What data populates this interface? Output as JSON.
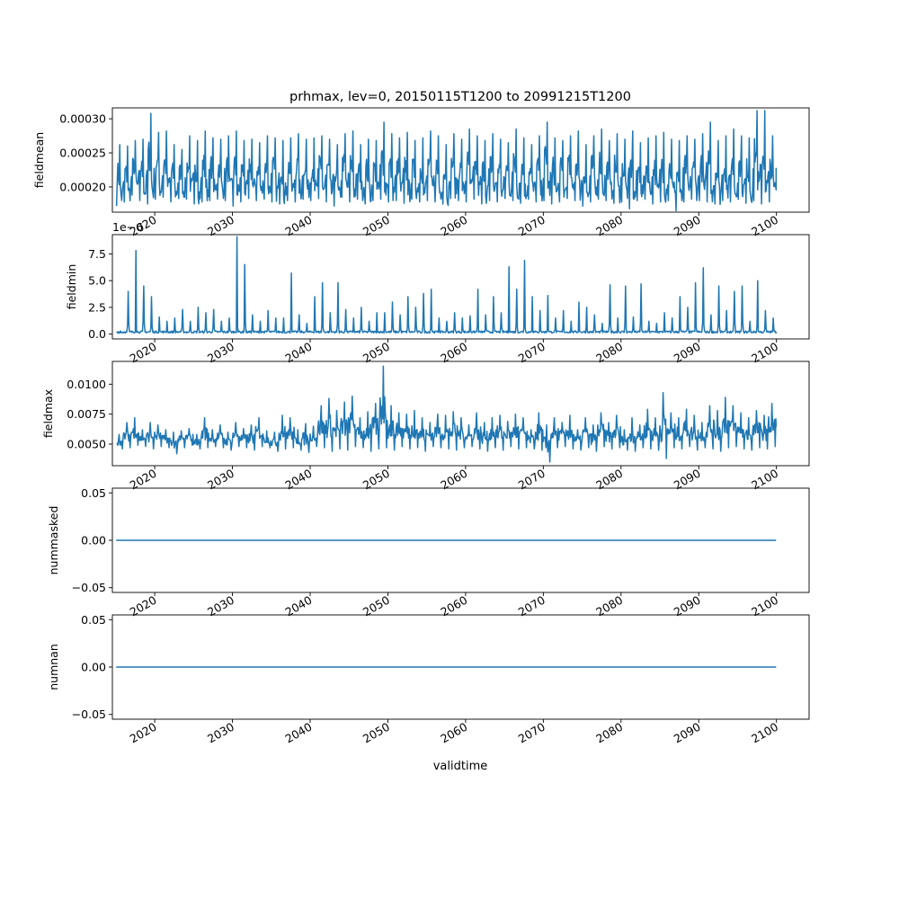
{
  "figure_title": "prhmax, lev=0, 20150115T1200 to 20991215T1200",
  "xlabel": "validtime",
  "line_color": "#1f77b4",
  "xaxis": {
    "ticks": [
      2020,
      2030,
      2040,
      2050,
      2060,
      2070,
      2080,
      2090,
      2100
    ],
    "tick_labels": [
      "2020",
      "2030",
      "2040",
      "2050",
      "2060",
      "2070",
      "2080",
      "2090",
      "2100"
    ],
    "range": [
      2015.04,
      2099.96
    ]
  },
  "chart_data": [
    {
      "type": "line",
      "ylabel": "fieldmean",
      "offset_text": "",
      "ylim": [
        0.000163,
        0.000316
      ],
      "yticks": [
        0.0002,
        0.00025,
        0.0003
      ],
      "ytick_labels": [
        "0.00020",
        "0.00025",
        "0.00030"
      ],
      "series": [
        {
          "x": [
            2015.0,
            2016.0,
            2017.0,
            2018.0,
            2019.0,
            2020.0,
            2021.0,
            2022.0,
            2023.0,
            2024.0,
            2025.0,
            2026.0,
            2027.0,
            2028.0,
            2029.0,
            2030.0,
            2031.0,
            2032.0,
            2033.0,
            2034.0,
            2035.0,
            2036.0,
            2037.0,
            2038.0,
            2039.0,
            2040.0,
            2041.0,
            2042.0,
            2043.0,
            2044.0,
            2045.0,
            2046.0,
            2047.0,
            2048.0,
            2049.0,
            2050.0,
            2051.0,
            2052.0,
            2053.0,
            2054.0,
            2055.0,
            2056.0,
            2057.0,
            2058.0,
            2059.0,
            2060.0,
            2061.0,
            2062.0,
            2063.0,
            2064.0,
            2065.0,
            2066.0,
            2067.0,
            2068.0,
            2069.0,
            2070.0,
            2071.0,
            2072.0,
            2073.0,
            2074.0,
            2075.0,
            2076.0,
            2077.0,
            2078.0,
            2079.0,
            2080.0,
            2081.0,
            2082.0,
            2083.0,
            2084.0,
            2085.0,
            2086.0,
            2087.0,
            2088.0,
            2089.0,
            2090.0,
            2091.0,
            2092.0,
            2093.0,
            2094.0,
            2095.0,
            2096.0,
            2097.0,
            2098.0,
            2099.0,
            2099.96
          ],
          "y": [
            0.000262,
            0.00026,
            0.000268,
            0.00027,
            0.000308,
            0.00028,
            0.000282,
            0.000262,
            0.000255,
            0.000275,
            0.000268,
            0.000282,
            0.000272,
            0.00027,
            0.000275,
            0.000282,
            0.000268,
            0.00027,
            0.000265,
            0.000275,
            0.000272,
            0.000268,
            0.000272,
            0.000278,
            0.00027,
            0.000272,
            0.000275,
            0.00027,
            0.000262,
            0.000278,
            0.000282,
            0.000262,
            0.00027,
            0.000268,
            0.000295,
            0.000278,
            0.000272,
            0.00028,
            0.000268,
            0.000272,
            0.000282,
            0.000275,
            0.000262,
            0.000278,
            0.00027,
            0.000285,
            0.000275,
            0.000268,
            0.000278,
            0.00027,
            0.000265,
            0.000285,
            0.000272,
            0.000262,
            0.000275,
            0.000295,
            0.000272,
            0.000268,
            0.000275,
            0.000282,
            0.000262,
            0.000275,
            0.000285,
            0.000268,
            0.000278,
            0.00027,
            0.000282,
            0.000265,
            0.000272,
            0.000275,
            0.00028,
            0.00027,
            0.000268,
            0.000275,
            0.00027,
            0.000278,
            0.000295,
            0.000268,
            0.000275,
            0.000285,
            0.000275,
            0.000272,
            0.000312,
            0.000312,
            0.000275,
            0.000228
          ],
          "y_min": [
            0.000172,
            0.000178,
            0.000188,
            0.00018,
            0.000175,
            0.000182,
            0.000185,
            0.000178,
            0.000183,
            0.000182,
            0.000175,
            0.000178,
            0.00018,
            0.000182,
            0.00018,
            0.000172,
            0.000178,
            0.000183,
            0.00018,
            0.000182,
            0.000178,
            0.000175,
            0.00018,
            0.000178,
            0.000182,
            0.00018,
            0.000183,
            0.000178,
            0.000172,
            0.000185,
            0.000178,
            0.000182,
            0.000175,
            0.00018,
            0.000182,
            0.000178,
            0.00018,
            0.000176,
            0.000182,
            0.000178,
            0.00018,
            0.000178,
            0.000175,
            0.000183,
            0.00018,
            0.000178,
            0.000182,
            0.000175,
            0.00018,
            0.000178,
            0.000183,
            0.00018,
            0.000176,
            0.000182,
            0.000178,
            0.00018,
            0.000175,
            0.000178,
            0.000183,
            0.00018,
            0.000172,
            0.000178,
            0.000182,
            0.00018,
            0.000176,
            0.000178,
            0.000168,
            0.00018,
            0.000182,
            0.000175,
            0.000178,
            0.00018,
            0.000165,
            0.000178,
            0.000182,
            0.00018,
            0.000178,
            0.000175,
            0.00018,
            0.000178,
            0.000182,
            0.000176,
            0.00018,
            0.000175,
            0.000178,
            0.00017
          ]
        }
      ]
    },
    {
      "type": "line",
      "ylabel": "fieldmin",
      "offset_text": "1e−6",
      "ylim": [
        -4.5e-07,
        9.3e-06
      ],
      "yticks": [
        0,
        2.5e-06,
        5e-06,
        7.5e-06
      ],
      "ytick_labels": [
        "0.0",
        "2.5",
        "5.0",
        "7.5"
      ],
      "series": [
        {
          "x": [
            2015.0,
            2016.0,
            2017.0,
            2018.0,
            2019.0,
            2020.0,
            2021.0,
            2022.0,
            2023.0,
            2024.0,
            2025.0,
            2026.0,
            2027.0,
            2028.0,
            2029.0,
            2030.0,
            2031.0,
            2032.0,
            2033.0,
            2034.0,
            2035.0,
            2036.0,
            2037.0,
            2038.0,
            2039.0,
            2040.0,
            2041.0,
            2042.0,
            2043.0,
            2044.0,
            2045.0,
            2046.0,
            2047.0,
            2048.0,
            2049.0,
            2050.0,
            2051.0,
            2052.0,
            2053.0,
            2054.0,
            2055.0,
            2056.0,
            2057.0,
            2058.0,
            2059.0,
            2060.0,
            2061.0,
            2062.0,
            2063.0,
            2064.0,
            2065.0,
            2066.0,
            2067.0,
            2068.0,
            2069.0,
            2070.0,
            2071.0,
            2072.0,
            2073.0,
            2074.0,
            2075.0,
            2076.0,
            2077.0,
            2078.0,
            2079.0,
            2080.0,
            2081.0,
            2082.0,
            2083.0,
            2084.0,
            2085.0,
            2086.0,
            2087.0,
            2088.0,
            2089.0,
            2090.0,
            2091.0,
            2092.0,
            2093.0,
            2094.0,
            2095.0,
            2096.0,
            2097.0,
            2098.0,
            2099.0,
            2099.96
          ],
          "y": [
            3e-07,
            4e-06,
            7.8e-06,
            4.5e-06,
            3.5e-06,
            1.6e-06,
            1.2e-06,
            1.5e-06,
            2.3e-06,
            1.2e-06,
            2.5e-06,
            2e-06,
            2.3e-06,
            1.2e-06,
            1.5e-06,
            9.1e-06,
            6.5e-06,
            1.8e-06,
            1.2e-06,
            2.2e-06,
            1.5e-06,
            1.5e-06,
            5.7e-06,
            1.8e-06,
            1e-06,
            3.5e-06,
            4.8e-06,
            2e-06,
            4.8e-06,
            2.3e-06,
            1.5e-06,
            2.5e-06,
            1.2e-06,
            2e-06,
            2e-06,
            3e-06,
            1.8e-06,
            3.5e-06,
            2.5e-06,
            3.8e-06,
            4.2e-06,
            1.5e-06,
            1.2e-06,
            2e-06,
            1.5e-06,
            1.7e-06,
            4.2e-06,
            1.8e-06,
            3.5e-06,
            2e-06,
            6.3e-06,
            4.2e-06,
            6.9e-06,
            3.5e-06,
            2.2e-06,
            3.6e-06,
            1.5e-06,
            2.2e-06,
            1.2e-06,
            3e-06,
            2.5e-06,
            1.8e-06,
            1e-06,
            4.6e-06,
            1.5e-06,
            4.5e-06,
            1.6e-06,
            4.7e-06,
            1.2e-06,
            1e-06,
            2e-06,
            1.5e-06,
            3.5e-06,
            2.5e-06,
            4.8e-06,
            6.2e-06,
            1.8e-06,
            4.5e-06,
            2.2e-06,
            4e-06,
            4.5e-06,
            1.2e-06,
            5e-06,
            2.2e-06,
            1.5e-06,
            2e-07
          ],
          "y_min": [
            1e-07,
            1e-07,
            1e-07,
            1e-07,
            1e-07,
            1e-07,
            1e-07,
            1e-07,
            1e-07,
            1e-07,
            1e-07,
            1e-07,
            1e-07,
            1e-07,
            1e-07,
            1e-07,
            1e-07,
            1e-07,
            1e-07,
            1e-07,
            1e-07,
            1e-07,
            1e-07,
            1e-07,
            1e-07,
            1e-07,
            1e-07,
            1e-07,
            1e-07,
            1e-07,
            1e-07,
            1e-07,
            1e-07,
            1e-07,
            1e-07,
            1e-07,
            1e-07,
            1e-07,
            1e-07,
            1e-07,
            1e-07,
            1e-07,
            1e-07,
            1e-07,
            1e-07,
            1e-07,
            1e-07,
            1e-07,
            1e-07,
            1e-07,
            1e-07,
            1e-07,
            1e-07,
            1e-07,
            1e-07,
            1e-07,
            1e-07,
            1e-07,
            1e-07,
            1e-07,
            1e-07,
            1e-07,
            1e-07,
            1e-07,
            1e-07,
            1e-07,
            1e-07,
            1e-07,
            1e-07,
            1e-07,
            1e-07,
            1e-07,
            1e-07,
            1e-07,
            1e-07,
            1e-07,
            1e-07,
            1e-07,
            1e-07,
            1e-07,
            1e-07,
            1e-07,
            1e-07,
            1e-07,
            1e-07,
            1e-07
          ]
        }
      ]
    },
    {
      "type": "line",
      "ylabel": "fieldmax",
      "offset_text": "",
      "ylim": [
        0.0032,
        0.0119
      ],
      "yticks": [
        0.005,
        0.0075,
        0.01
      ],
      "ytick_labels": [
        "0.0050",
        "0.0075",
        "0.0100"
      ],
      "series": [
        {
          "x": [
            2015.0,
            2016.0,
            2017.0,
            2018.0,
            2019.0,
            2020.0,
            2021.0,
            2022.0,
            2023.0,
            2024.0,
            2025.0,
            2026.0,
            2027.0,
            2028.0,
            2029.0,
            2030.0,
            2031.0,
            2032.0,
            2033.0,
            2034.0,
            2035.0,
            2036.0,
            2037.0,
            2038.0,
            2039.0,
            2040.0,
            2041.0,
            2042.0,
            2043.0,
            2044.0,
            2045.0,
            2046.0,
            2047.0,
            2048.0,
            2049.0,
            2050.0,
            2051.0,
            2052.0,
            2053.0,
            2054.0,
            2055.0,
            2056.0,
            2057.0,
            2058.0,
            2059.0,
            2060.0,
            2061.0,
            2062.0,
            2063.0,
            2064.0,
            2065.0,
            2066.0,
            2067.0,
            2068.0,
            2069.0,
            2070.0,
            2071.0,
            2072.0,
            2073.0,
            2074.0,
            2075.0,
            2076.0,
            2077.0,
            2078.0,
            2079.0,
            2080.0,
            2081.0,
            2082.0,
            2083.0,
            2084.0,
            2085.0,
            2086.0,
            2087.0,
            2088.0,
            2089.0,
            2090.0,
            2091.0,
            2092.0,
            2093.0,
            2094.0,
            2095.0,
            2096.0,
            2097.0,
            2098.0,
            2099.0,
            2099.96
          ],
          "y": [
            0.0058,
            0.0068,
            0.0072,
            0.0062,
            0.0068,
            0.0066,
            0.0062,
            0.006,
            0.0061,
            0.0063,
            0.0058,
            0.0072,
            0.0062,
            0.0066,
            0.006,
            0.0068,
            0.0063,
            0.0066,
            0.0072,
            0.0061,
            0.006,
            0.0074,
            0.0072,
            0.0062,
            0.0067,
            0.0065,
            0.0082,
            0.0088,
            0.0078,
            0.0085,
            0.009,
            0.0072,
            0.0077,
            0.0084,
            0.0115,
            0.0082,
            0.0076,
            0.0075,
            0.0078,
            0.0072,
            0.0068,
            0.0075,
            0.0074,
            0.0077,
            0.0072,
            0.0066,
            0.0076,
            0.0068,
            0.0072,
            0.0074,
            0.0069,
            0.0075,
            0.0072,
            0.0062,
            0.0076,
            0.0066,
            0.0072,
            0.0068,
            0.0074,
            0.0062,
            0.0072,
            0.0066,
            0.0076,
            0.0068,
            0.0074,
            0.0062,
            0.0072,
            0.0066,
            0.0079,
            0.0072,
            0.0093,
            0.0076,
            0.0072,
            0.0079,
            0.0074,
            0.0068,
            0.0082,
            0.0078,
            0.0089,
            0.0082,
            0.0076,
            0.0072,
            0.0078,
            0.0074,
            0.0084,
            0.0066
          ],
          "y_min": [
            0.0046,
            0.0047,
            0.0049,
            0.0048,
            0.0046,
            0.0048,
            0.0047,
            0.0042,
            0.0047,
            0.0049,
            0.0046,
            0.0047,
            0.0048,
            0.0047,
            0.0045,
            0.0048,
            0.0047,
            0.0045,
            0.0048,
            0.0047,
            0.0044,
            0.0046,
            0.0047,
            0.0045,
            0.0043,
            0.0048,
            0.0047,
            0.0044,
            0.0046,
            0.0045,
            0.0048,
            0.0047,
            0.0044,
            0.0046,
            0.0047,
            0.0045,
            0.0048,
            0.0046,
            0.0047,
            0.0044,
            0.0048,
            0.0047,
            0.0046,
            0.0045,
            0.0047,
            0.0048,
            0.0046,
            0.0044,
            0.0047,
            0.0045,
            0.0048,
            0.0046,
            0.0047,
            0.0046,
            0.0045,
            0.0035,
            0.0047,
            0.0048,
            0.0046,
            0.0045,
            0.0047,
            0.0044,
            0.0048,
            0.0046,
            0.0047,
            0.0045,
            0.0044,
            0.0047,
            0.0046,
            0.0045,
            0.0038,
            0.0047,
            0.0046,
            0.0048,
            0.0045,
            0.0047,
            0.0046,
            0.0044,
            0.0047,
            0.0048,
            0.0046,
            0.0045,
            0.0047,
            0.0046,
            0.0048,
            0.0064
          ]
        }
      ]
    },
    {
      "type": "line",
      "ylabel": "nummasked",
      "offset_text": "",
      "ylim": [
        -0.055,
        0.055
      ],
      "yticks": [
        -0.05,
        0,
        0.05
      ],
      "ytick_labels": [
        "−0.05",
        "0.00",
        "0.05"
      ],
      "series": [
        {
          "x": [
            2015.04,
            2099.96
          ],
          "y": [
            0,
            0
          ]
        }
      ]
    },
    {
      "type": "line",
      "ylabel": "numnan",
      "offset_text": "",
      "ylim": [
        -0.055,
        0.055
      ],
      "yticks": [
        -0.05,
        0,
        0.05
      ],
      "ytick_labels": [
        "−0.05",
        "0.00",
        "0.05"
      ],
      "series": [
        {
          "x": [
            2015.04,
            2099.96
          ],
          "y": [
            0,
            0
          ]
        }
      ]
    }
  ]
}
